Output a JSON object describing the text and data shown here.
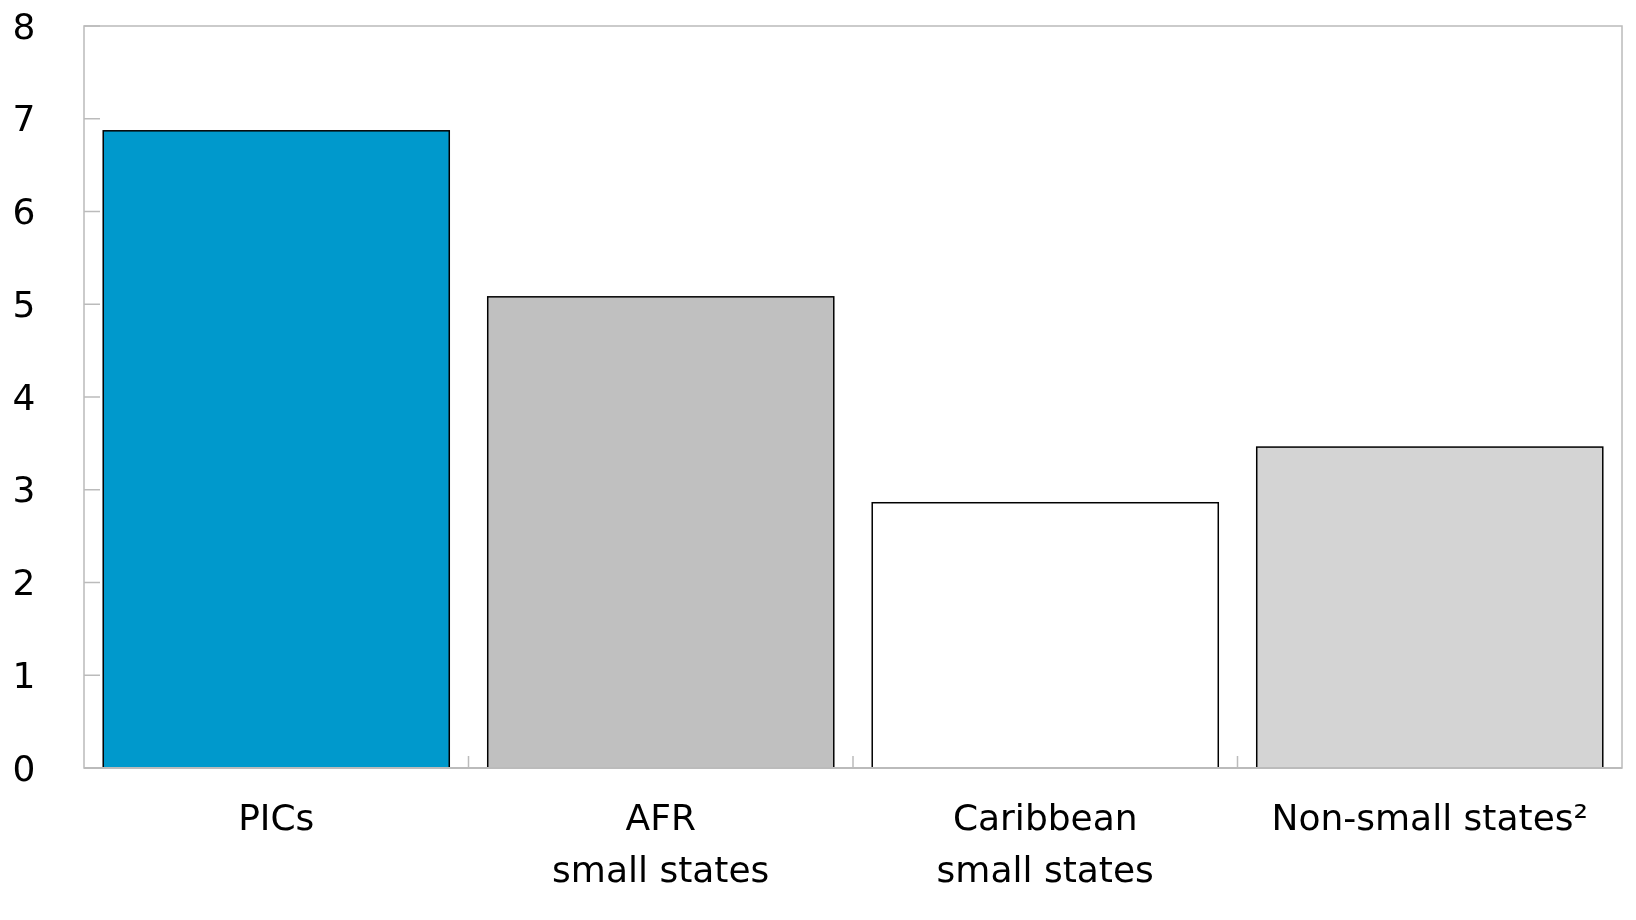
{
  "chart_data": {
    "type": "bar",
    "categories": [
      "PICs",
      "AFR\nsmall states",
      "Caribbean\nsmall states",
      "Non-small states²"
    ],
    "values": [
      6.87,
      5.08,
      2.86,
      3.46
    ],
    "colors": [
      "#0099cc",
      "#c0c0c0",
      "#ffffff",
      "#d4d4d4"
    ],
    "ylim": [
      0,
      8
    ],
    "yticks": [
      0,
      1,
      2,
      3,
      4,
      5,
      6,
      7,
      8
    ],
    "grid": false
  }
}
